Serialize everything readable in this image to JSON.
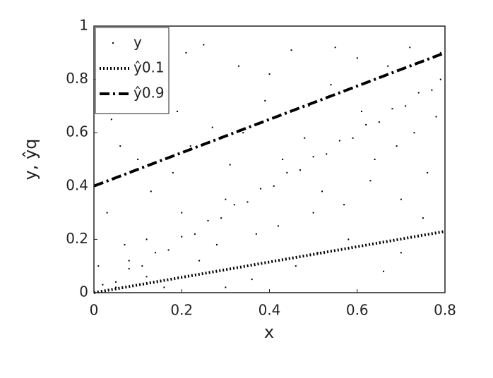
{
  "chart_data": {
    "type": "scatter",
    "xlabel": "x",
    "ylabel": "y, ŷq",
    "xlim": [
      0,
      0.8
    ],
    "ylim": [
      0,
      1
    ],
    "xticks": [
      0,
      0.2,
      0.4,
      0.6,
      0.8
    ],
    "yticks": [
      0,
      0.2,
      0.4,
      0.6,
      0.8,
      1
    ],
    "legend": "upper left",
    "series": [
      {
        "name": "y",
        "color": "#000000",
        "style": "points",
        "x": [
          0.02,
          0.05,
          0.08,
          0.11,
          0.14,
          0.17,
          0.2,
          0.23,
          0.26,
          0.29,
          0.32,
          0.35,
          0.38,
          0.41,
          0.44,
          0.47,
          0.5,
          0.53,
          0.56,
          0.59,
          0.62,
          0.65,
          0.68,
          0.71,
          0.74,
          0.77,
          0.79,
          0.03,
          0.06,
          0.09,
          0.12,
          0.15,
          0.18,
          0.21,
          0.24,
          0.27,
          0.3,
          0.33,
          0.36,
          0.39,
          0.42,
          0.45,
          0.48,
          0.51,
          0.54,
          0.57,
          0.6,
          0.63,
          0.66,
          0.69,
          0.72,
          0.75,
          0.78,
          0.01,
          0.04,
          0.07,
          0.1,
          0.13,
          0.16,
          0.19,
          0.22,
          0.25,
          0.28,
          0.31,
          0.34,
          0.37,
          0.4,
          0.43,
          0.46,
          0.49,
          0.52,
          0.55,
          0.58,
          0.61,
          0.64,
          0.67,
          0.7,
          0.73,
          0.76,
          0.79,
          0.05,
          0.08,
          0.12,
          0.2,
          0.3,
          0.5,
          0.7
        ],
        "values": [
          0.03,
          0.04,
          0.09,
          0.1,
          0.15,
          0.16,
          0.21,
          0.22,
          0.27,
          0.28,
          0.33,
          0.34,
          0.39,
          0.4,
          0.45,
          0.46,
          0.51,
          0.52,
          0.57,
          0.58,
          0.63,
          0.64,
          0.69,
          0.7,
          0.75,
          0.76,
          0.8,
          0.3,
          0.55,
          0.7,
          0.2,
          0.8,
          0.45,
          0.9,
          0.12,
          0.62,
          0.35,
          0.85,
          0.05,
          0.72,
          0.25,
          0.91,
          0.58,
          0.15,
          0.78,
          0.33,
          0.88,
          0.42,
          0.08,
          0.55,
          0.92,
          0.28,
          0.66,
          0.1,
          0.65,
          0.18,
          0.5,
          0.38,
          0.02,
          0.68,
          0.55,
          0.93,
          0.18,
          0.48,
          0.6,
          0.22,
          0.82,
          0.5,
          0.1,
          0.7,
          0.38,
          0.92,
          0.2,
          0.68,
          0.5,
          0.85,
          0.35,
          0.6,
          0.45,
          0.9,
          0.02,
          0.12,
          0.06,
          0.3,
          0.02,
          0.3,
          0.15
        ]
      },
      {
        "name": "ŷ0.1",
        "color": "#000000",
        "style": "dotted",
        "x": [
          0,
          0.8
        ],
        "values": [
          0,
          0.23
        ]
      },
      {
        "name": "ŷ0.9",
        "color": "#000000",
        "style": "dashdot",
        "x": [
          0,
          0.8
        ],
        "values": [
          0.4,
          0.9
        ]
      }
    ]
  }
}
